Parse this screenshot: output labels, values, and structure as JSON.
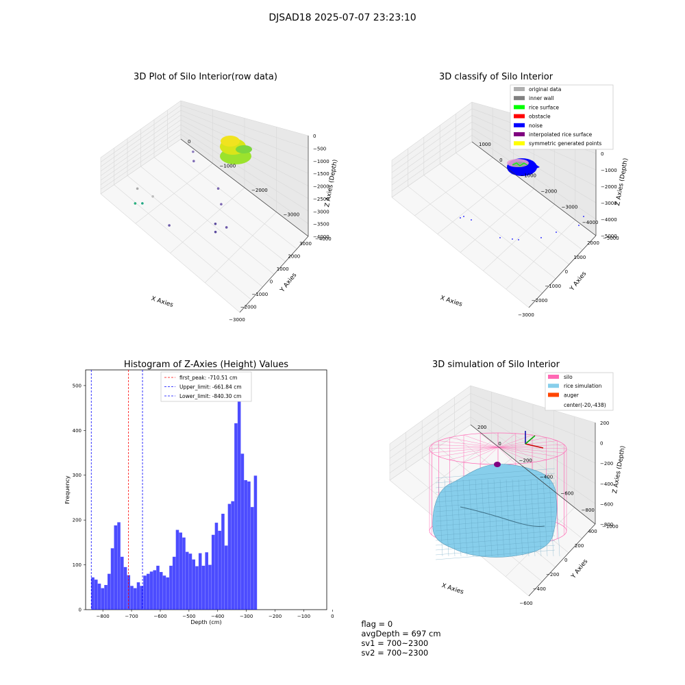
{
  "suptitle": "DJSAD18 2025-07-07 23:23:10",
  "status": {
    "flag": "flag = 0",
    "avg": "avgDepth = 697 cm",
    "sv1": "sv1 = 700~2300",
    "sv2": "sv2 = 700~2300"
  },
  "chart_data": [
    {
      "type": "scatter",
      "projection": "3d",
      "title": "3D Plot of Silo Interior(row data)",
      "xlabel": "X Axies",
      "ylabel": "Y Axies",
      "zlabel": "Z Axies (Depth)",
      "x_ticks": [
        -3000,
        -2000,
        -1000,
        0,
        1000,
        2000,
        3000
      ],
      "y_ticks": [
        0,
        -1000,
        -2000,
        -3000,
        -4000
      ],
      "z_ticks": [
        0,
        -500,
        -1000,
        -1500,
        -2000,
        -2500,
        -3000,
        -3500,
        -4000
      ],
      "grid": true,
      "points_color_scale": "depth (viridis)",
      "dense_cluster": {
        "x_range": [
          -700,
          300
        ],
        "y_range": [
          -800,
          200
        ],
        "z_range": [
          -500,
          -1000
        ]
      },
      "sparse_points": [
        {
          "x": -2700,
          "y": -500,
          "z": -2000
        },
        {
          "x": -2300,
          "y": -900,
          "z": -2200
        },
        {
          "x": -2900,
          "y": -500,
          "z": -3300
        },
        {
          "x": -2500,
          "y": -600,
          "z": -3400
        },
        {
          "x": -2300,
          "y": -1500,
          "z": -3700
        },
        {
          "x": -500,
          "y": -2500,
          "z": -3800
        },
        {
          "x": 0,
          "y": -2300,
          "z": -3900
        },
        {
          "x": 300,
          "y": -2600,
          "z": -3900
        },
        {
          "x": 1300,
          "y": -2000,
          "z": -3800
        },
        {
          "x": 2000,
          "y": -1600,
          "z": -3700
        },
        {
          "x": 2600,
          "y": -400,
          "z": -3900
        },
        {
          "x": 3000,
          "y": -200,
          "z": -3700
        }
      ]
    },
    {
      "type": "scatter",
      "projection": "3d",
      "title": "3D classify of Silo Interior",
      "xlabel": "X Axies",
      "ylabel": "Y Axies",
      "zlabel": "Z Axies (Depth)",
      "x_ticks": [
        -3000,
        -2000,
        -1000,
        0,
        1000,
        2000
      ],
      "y_ticks": [
        1000,
        0,
        -1000,
        -2000,
        -3000,
        -4000,
        -5000
      ],
      "z_ticks": [
        1000,
        0,
        -1000,
        -2000,
        -3000,
        -4000,
        -5000
      ],
      "grid": true,
      "legend_position": "top-right",
      "series": [
        {
          "name": "original data",
          "color": "#b0b0b0"
        },
        {
          "name": "inner wall",
          "color": "#808080"
        },
        {
          "name": "rice surface",
          "color": "#00ff00"
        },
        {
          "name": "obstacle",
          "color": "#ff0000"
        },
        {
          "name": "noise",
          "color": "#0000ff"
        },
        {
          "name": "interpolated rice surface",
          "color": "#800080"
        },
        {
          "name": "symmetric generated points",
          "color": "#ffff00"
        }
      ]
    },
    {
      "type": "bar",
      "title": "Histogram of Z-Axies (Height) Values",
      "xlabel": "Depth (cm)",
      "ylabel": "Frequency",
      "xlim": [
        -860,
        -20
      ],
      "ylim": [
        0,
        535
      ],
      "x_ticks": [
        -800,
        -700,
        -600,
        -500,
        -400,
        -300,
        -200,
        -100,
        0
      ],
      "y_ticks": [
        0,
        100,
        200,
        300,
        400,
        500
      ],
      "bar_color": "#0000ff",
      "bin_start": -840.3,
      "bin_width": 11.33,
      "values": [
        72,
        67,
        58,
        48,
        55,
        80,
        137,
        188,
        195,
        118,
        95,
        77,
        53,
        48,
        61,
        53,
        76,
        80,
        85,
        88,
        98,
        84,
        76,
        72,
        98,
        118,
        178,
        172,
        161,
        129,
        125,
        112,
        97,
        126,
        98,
        128,
        100,
        167,
        194,
        176,
        214,
        143,
        236,
        242,
        416,
        511,
        348,
        289,
        286,
        229,
        299
      ],
      "vlines": [
        {
          "label": "first_peak: -710.51 cm",
          "x": -710.51,
          "color": "#ff0000"
        },
        {
          "label": "Upper_limit: -661.84 cm",
          "x": -661.84,
          "color": "#0000ff"
        },
        {
          "label": "Lower_limit: -840.30 cm",
          "x": -840.3,
          "color": "#0000ff"
        }
      ],
      "legend_position": "top-center"
    },
    {
      "type": "surface",
      "projection": "3d",
      "title": "3D simulation of Silo Interior",
      "xlabel": "X Axies",
      "ylabel": "Y Axies",
      "zlabel": "Z Axies (Depth)",
      "x_ticks": [
        -600,
        -400,
        -200,
        0,
        200,
        400
      ],
      "y_ticks": [
        200,
        0,
        -200,
        -400,
        -600,
        -800,
        -1000
      ],
      "z_ticks": [
        200,
        0,
        -200,
        -400,
        -600,
        -800
      ],
      "grid": true,
      "legend_position": "top-right",
      "series": [
        {
          "name": "silo",
          "color": "#ff69b4"
        },
        {
          "name": "rice simulation",
          "color": "#87ceeb"
        },
        {
          "name": "auger",
          "color": "#ff4500"
        }
      ],
      "annotation": "center(-20,-438)"
    }
  ]
}
